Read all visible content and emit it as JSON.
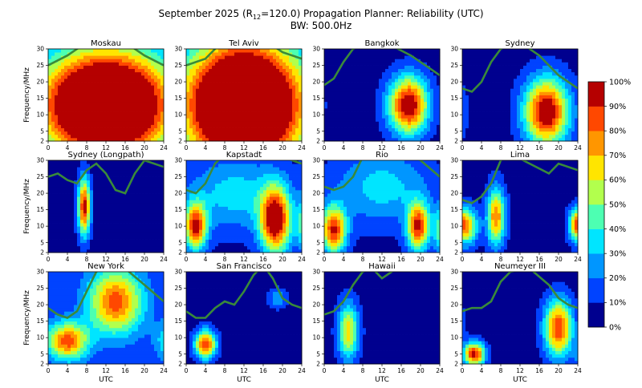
{
  "chart_data": {
    "type": "heatmap",
    "title_prefix": "September 2025 (R",
    "title_sub": "12",
    "title_suffix": "=120.0) Propagation Planner: Reliability (UTC)",
    "subtitle": "BW: 500.0Hz",
    "xlabel": "UTC",
    "ylabel": "Frequency/MHz",
    "xlim": [
      0,
      24
    ],
    "ylim": [
      2,
      30
    ],
    "x_ticks": [
      0,
      4,
      8,
      12,
      16,
      20,
      24
    ],
    "y_ticks": [
      2,
      5,
      10,
      15,
      20,
      25,
      30
    ],
    "colorbar": {
      "ticks": [
        "0%",
        "10%",
        "20%",
        "30%",
        "40%",
        "50%",
        "60%",
        "70%",
        "80%",
        "90%",
        "100%"
      ],
      "colors": [
        "#00008f",
        "#0043ff",
        "#0096ff",
        "#00e5ff",
        "#4dffb2",
        "#b2ff4d",
        "#ffe500",
        "#ff9600",
        "#ff4800",
        "#b50000"
      ]
    },
    "muf_color": "#3a8a3a",
    "panels": [
      {
        "name": "Moskau",
        "blobs": [
          {
            "t": 12,
            "f": 13,
            "st": 10,
            "sf": 12,
            "a": 1.6,
            "w": 1
          }
        ],
        "bg": 0.0,
        "muf": [
          [
            0,
            25
          ],
          [
            4,
            28
          ],
          [
            8,
            32
          ],
          [
            12,
            33
          ],
          [
            16,
            32
          ],
          [
            20,
            28
          ],
          [
            24,
            25
          ]
        ]
      },
      {
        "name": "Tel Aviv",
        "blobs": [
          {
            "t": 12,
            "f": 13,
            "st": 9,
            "sf": 14,
            "a": 1.7,
            "w": 1
          }
        ],
        "bg": 0.0,
        "muf": [
          [
            0,
            25
          ],
          [
            4,
            27
          ],
          [
            8,
            33
          ],
          [
            12,
            34
          ],
          [
            16,
            33
          ],
          [
            20,
            29
          ],
          [
            24,
            27
          ]
        ]
      },
      {
        "name": "Bangkok",
        "blobs": [
          {
            "t": 17.5,
            "f": 13,
            "st": 2.8,
            "sf": 6,
            "a": 1.0,
            "w": 1
          }
        ],
        "bg": 0.05,
        "muf": [
          [
            0,
            19
          ],
          [
            2,
            21
          ],
          [
            4,
            26
          ],
          [
            6,
            30
          ],
          [
            10,
            32
          ],
          [
            14,
            31
          ],
          [
            18,
            28
          ],
          [
            22,
            24
          ],
          [
            24,
            22
          ]
        ]
      },
      {
        "name": "Sydney",
        "blobs": [
          {
            "t": 17.5,
            "f": 11,
            "st": 3.2,
            "sf": 7,
            "a": 1.0,
            "w": 1
          }
        ],
        "bg": 0.05,
        "muf": [
          [
            0,
            18
          ],
          [
            2,
            17
          ],
          [
            4,
            20
          ],
          [
            6,
            26
          ],
          [
            8,
            30
          ],
          [
            12,
            32
          ],
          [
            16,
            28
          ],
          [
            20,
            22
          ],
          [
            24,
            18
          ]
        ]
      },
      {
        "name": "Sydney (Longpath)",
        "blobs": [
          {
            "t": 7.5,
            "f": 16,
            "st": 0.9,
            "sf": 6,
            "a": 0.9,
            "w": 1
          }
        ],
        "bg": 0.05,
        "muf": [
          [
            0,
            25
          ],
          [
            2,
            26
          ],
          [
            4,
            24
          ],
          [
            6,
            23
          ],
          [
            8,
            27
          ],
          [
            10,
            29
          ],
          [
            12,
            26
          ],
          [
            14,
            21
          ],
          [
            16,
            20
          ],
          [
            18,
            26
          ],
          [
            20,
            30
          ],
          [
            24,
            28
          ]
        ]
      },
      {
        "name": "Kapstadt",
        "blobs": [
          {
            "t": 18.5,
            "f": 12,
            "st": 2.2,
            "sf": 7,
            "a": 1.0,
            "w": 1
          },
          {
            "t": 2,
            "f": 10,
            "st": 1.6,
            "sf": 5,
            "a": 0.85,
            "w": 1
          },
          {
            "t": 10,
            "f": 20,
            "st": 7,
            "sf": 8,
            "a": 0.3,
            "w": 1
          }
        ],
        "bg": 0.05,
        "muf": [
          [
            0,
            21
          ],
          [
            2,
            20
          ],
          [
            4,
            23
          ],
          [
            6,
            29
          ],
          [
            8,
            32
          ],
          [
            16,
            33
          ],
          [
            20,
            31
          ],
          [
            24,
            29
          ]
        ]
      },
      {
        "name": "Rio",
        "blobs": [
          {
            "t": 19.5,
            "f": 10,
            "st": 1.6,
            "sf": 5,
            "a": 0.85,
            "w": 1
          },
          {
            "t": 2,
            "f": 9,
            "st": 1.8,
            "sf": 5,
            "a": 0.85,
            "w": 1
          },
          {
            "t": 12,
            "f": 22,
            "st": 7,
            "sf": 8,
            "a": 0.3,
            "w": 1
          }
        ],
        "bg": 0.05,
        "muf": [
          [
            0,
            22
          ],
          [
            2,
            21
          ],
          [
            4,
            22
          ],
          [
            6,
            25
          ],
          [
            8,
            31
          ],
          [
            16,
            33
          ],
          [
            20,
            30
          ],
          [
            24,
            25
          ]
        ]
      },
      {
        "name": "Lima",
        "blobs": [
          {
            "t": 7,
            "f": 13,
            "st": 1.3,
            "sf": 6,
            "a": 0.75,
            "w": 1
          },
          {
            "t": 1,
            "f": 10,
            "st": 1.6,
            "sf": 4,
            "a": 0.6,
            "w": 1
          },
          {
            "t": 23.5,
            "f": 11,
            "st": 1.0,
            "sf": 3,
            "a": 0.4,
            "w": 1
          }
        ],
        "bg": 0.05,
        "muf": [
          [
            0,
            18
          ],
          [
            2,
            17
          ],
          [
            4,
            19
          ],
          [
            6,
            23
          ],
          [
            8,
            30
          ],
          [
            10,
            32
          ],
          [
            14,
            29
          ],
          [
            18,
            26
          ],
          [
            20,
            29
          ],
          [
            22,
            28
          ],
          [
            24,
            27
          ]
        ]
      },
      {
        "name": "New York",
        "blobs": [
          {
            "t": 14,
            "f": 21,
            "st": 4,
            "sf": 7,
            "a": 0.75,
            "w": 1
          },
          {
            "t": 4,
            "f": 9,
            "st": 3,
            "sf": 4,
            "a": 0.75,
            "w": 1
          }
        ],
        "bg": 0.1,
        "muf": [
          [
            0,
            19
          ],
          [
            2,
            17
          ],
          [
            4,
            16
          ],
          [
            6,
            18
          ],
          [
            8,
            24
          ],
          [
            10,
            30
          ],
          [
            12,
            32
          ],
          [
            16,
            31
          ],
          [
            20,
            26
          ],
          [
            24,
            21
          ]
        ]
      },
      {
        "name": "San Francisco",
        "blobs": [
          {
            "t": 4,
            "f": 8,
            "st": 1.5,
            "sf": 3,
            "a": 0.85,
            "w": 1
          },
          {
            "t": 19,
            "f": 22,
            "st": 1.3,
            "sf": 2,
            "a": 0.25,
            "w": 1
          }
        ],
        "bg": 0.05,
        "muf": [
          [
            0,
            18
          ],
          [
            2,
            16
          ],
          [
            4,
            16
          ],
          [
            6,
            19
          ],
          [
            8,
            21
          ],
          [
            10,
            20
          ],
          [
            12,
            24
          ],
          [
            14,
            29
          ],
          [
            16,
            32
          ],
          [
            18,
            28
          ],
          [
            20,
            22
          ],
          [
            22,
            20
          ],
          [
            24,
            19
          ]
        ]
      },
      {
        "name": "Hawaii",
        "blobs": [
          {
            "t": 5,
            "f": 12,
            "st": 1.5,
            "sf": 6,
            "a": 0.6,
            "w": 1
          }
        ],
        "bg": 0.05,
        "muf": [
          [
            0,
            17
          ],
          [
            2,
            18
          ],
          [
            4,
            21
          ],
          [
            6,
            26
          ],
          [
            8,
            30
          ],
          [
            10,
            31
          ],
          [
            12,
            28
          ],
          [
            14,
            30
          ],
          [
            16,
            32
          ],
          [
            20,
            33
          ],
          [
            24,
            31
          ]
        ]
      },
      {
        "name": "Neumeyer III",
        "blobs": [
          {
            "t": 20,
            "f": 13,
            "st": 2,
            "sf": 6,
            "a": 0.85,
            "w": 1
          },
          {
            "t": 2.5,
            "f": 5,
            "st": 1.5,
            "sf": 2.5,
            "a": 0.9,
            "w": 1
          }
        ],
        "bg": 0.05,
        "muf": [
          [
            0,
            18
          ],
          [
            2,
            19
          ],
          [
            4,
            19
          ],
          [
            6,
            21
          ],
          [
            8,
            27
          ],
          [
            10,
            30
          ],
          [
            14,
            31
          ],
          [
            18,
            26
          ],
          [
            20,
            22
          ],
          [
            22,
            20
          ],
          [
            24,
            19
          ]
        ]
      }
    ]
  }
}
